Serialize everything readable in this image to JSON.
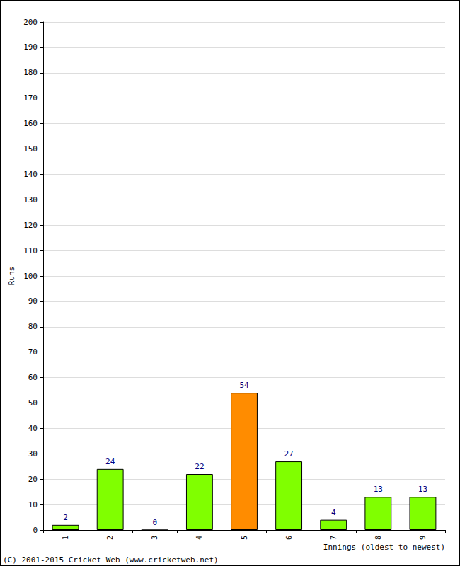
{
  "chart_data": {
    "type": "bar",
    "categories": [
      "1",
      "2",
      "3",
      "4",
      "5",
      "6",
      "7",
      "8",
      "9"
    ],
    "values": [
      2,
      24,
      0,
      22,
      54,
      27,
      4,
      13,
      13
    ],
    "colors": [
      "#80ff00",
      "#80ff00",
      "#80ff00",
      "#80ff00",
      "#ff8c00",
      "#80ff00",
      "#80ff00",
      "#80ff00",
      "#80ff00"
    ],
    "xlabel": "Innings (oldest to newest)",
    "ylabel": "Runs",
    "annotation": "(C) 2001-2015 Cricket Web (www.cricketweb.net)",
    "ylim": [
      0,
      200
    ],
    "yticks": [
      0,
      10,
      20,
      30,
      40,
      50,
      60,
      70,
      80,
      90,
      100,
      110,
      120,
      130,
      140,
      150,
      160,
      170,
      180,
      190,
      200
    ],
    "grid": true,
    "data_labels": true
  }
}
